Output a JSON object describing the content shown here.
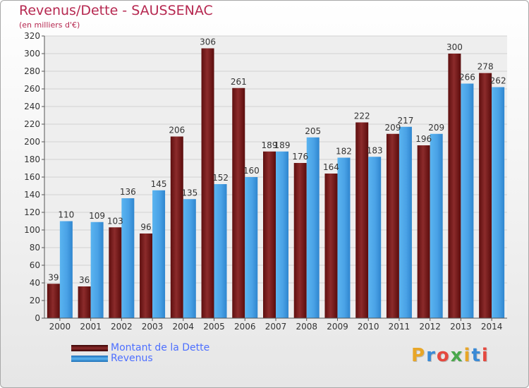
{
  "title": "Revenus/Dette - SAUSSENAC",
  "subtitle": "(en milliers d'€)",
  "legend": {
    "debt": "Montant de la Dette",
    "revenue": "Revenus"
  },
  "logo": {
    "text": "Proxiti",
    "colors": [
      "#e8a628",
      "#3a8ad6",
      "#e5493f",
      "#4aa84c",
      "#e8a628",
      "#3a8ad6",
      "#e5493f"
    ]
  },
  "colors": {
    "debt": "#7a1a1a",
    "revenue": "#4ca6e8",
    "title": "#b62850",
    "legend_text": "#4d6fff"
  },
  "chart_data": {
    "type": "bar",
    "title": "Revenus/Dette - SAUSSENAC",
    "subtitle": "(en milliers d'€)",
    "categories": [
      "2000",
      "2001",
      "2002",
      "2003",
      "2004",
      "2005",
      "2006",
      "2007",
      "2008",
      "2009",
      "2010",
      "2011",
      "2012",
      "2013",
      "2014"
    ],
    "series": [
      {
        "name": "Montant de la Dette",
        "values": [
          39,
          36,
          103,
          96,
          206,
          306,
          261,
          189,
          176,
          164,
          222,
          209,
          196,
          300,
          278
        ]
      },
      {
        "name": "Revenus",
        "values": [
          110,
          109,
          136,
          145,
          135,
          152,
          160,
          189,
          205,
          182,
          183,
          217,
          209,
          266,
          262
        ]
      }
    ],
    "ylim": [
      0,
      320
    ],
    "yticks": [
      0,
      20,
      40,
      60,
      80,
      100,
      120,
      140,
      160,
      180,
      200,
      220,
      240,
      260,
      280,
      300,
      320
    ],
    "grid": true,
    "legend_position": "bottom-left"
  }
}
